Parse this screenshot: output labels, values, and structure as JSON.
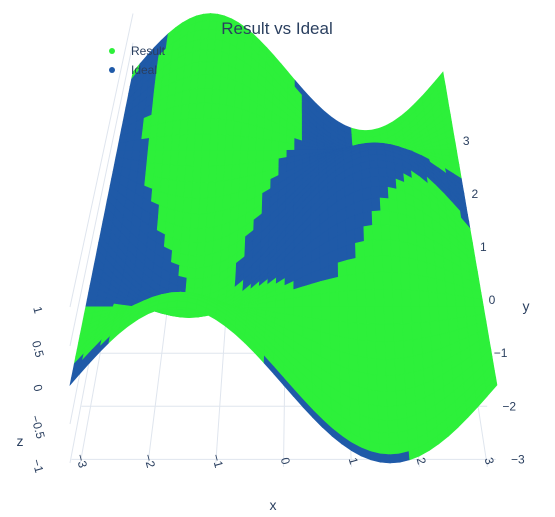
{
  "chart_data": {
    "type": "scatter3d",
    "title": "Result vs Ideal",
    "legend": {
      "placement": "top-left",
      "entries": [
        {
          "name": "Result",
          "color": "#2df03a"
        },
        {
          "name": "Ideal",
          "color": "#1f5aa8"
        }
      ]
    },
    "axes": {
      "x": {
        "title": "x",
        "range": [
          -3.14,
          3.14
        ],
        "ticks": [
          "−3",
          "−2",
          "−1",
          "0",
          "1",
          "2",
          "3"
        ]
      },
      "y": {
        "title": "y",
        "range": [
          -3.14,
          3.14
        ],
        "ticks": [
          "−3",
          "−2",
          "−1",
          "0",
          "1",
          "2",
          "3"
        ]
      },
      "z": {
        "title": "z",
        "range": [
          -1,
          1
        ],
        "ticks": [
          "−1",
          "−0.5",
          "0",
          "0.5",
          "1"
        ]
      }
    },
    "grid": true,
    "surface_function": "z = sin(x) * cos(y)",
    "series": [
      {
        "name": "Result",
        "color": "#2df03a",
        "description_of_values": "points on z=sin(x)cos(y) where result value differs"
      },
      {
        "name": "Ideal",
        "color": "#1f5aa8",
        "description_of_values": "points on z=sin(x)cos(y) where ideal value shown"
      }
    ]
  }
}
